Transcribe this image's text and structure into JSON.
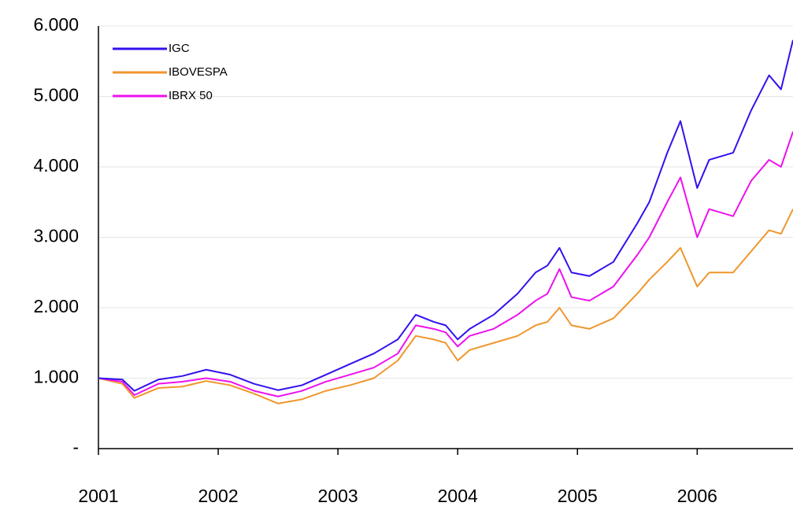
{
  "chart_data": {
    "type": "line",
    "x": [
      2001.0,
      2001.2,
      2001.3,
      2001.5,
      2001.7,
      2001.9,
      2002.1,
      2002.3,
      2002.5,
      2002.7,
      2002.9,
      2003.1,
      2003.3,
      2003.5,
      2003.65,
      2003.8,
      2003.9,
      2004.0,
      2004.1,
      2004.3,
      2004.5,
      2004.65,
      2004.75,
      2004.85,
      2004.95,
      2005.1,
      2005.3,
      2005.5,
      2005.6,
      2005.75,
      2005.86,
      2006.0,
      2006.1,
      2006.3,
      2006.45,
      2006.6,
      2006.7,
      2006.8
    ],
    "series": [
      {
        "name": "IGC",
        "color": "#3311ee",
        "values": [
          1000,
          980,
          820,
          980,
          1030,
          1120,
          1050,
          920,
          830,
          900,
          1050,
          1200,
          1350,
          1550,
          1900,
          1800,
          1750,
          1550,
          1700,
          1900,
          2200,
          2500,
          2600,
          2850,
          2500,
          2450,
          2650,
          3200,
          3500,
          4200,
          4650,
          3700,
          4100,
          4200,
          4800,
          5300,
          5100,
          5800
        ]
      },
      {
        "name": "IBOVESPA",
        "color": "#f0962c",
        "values": [
          1000,
          920,
          720,
          860,
          880,
          960,
          900,
          780,
          640,
          700,
          820,
          900,
          1000,
          1250,
          1600,
          1550,
          1500,
          1250,
          1400,
          1500,
          1600,
          1750,
          1800,
          2000,
          1750,
          1700,
          1850,
          2200,
          2400,
          2650,
          2850,
          2300,
          2500,
          2500,
          2800,
          3100,
          3050,
          3400
        ]
      },
      {
        "name": "IBRX 50",
        "color": "#ee11ee",
        "values": [
          1000,
          950,
          760,
          920,
          950,
          1000,
          950,
          820,
          740,
          820,
          950,
          1050,
          1150,
          1350,
          1750,
          1700,
          1650,
          1450,
          1600,
          1700,
          1900,
          2100,
          2200,
          2550,
          2150,
          2100,
          2300,
          2750,
          3000,
          3500,
          3850,
          3000,
          3400,
          3300,
          3800,
          4100,
          4000,
          4500
        ]
      }
    ],
    "xlim": [
      2001,
      2006.8
    ],
    "xticks": [
      2001,
      2002,
      2003,
      2004,
      2005,
      2006
    ],
    "ylim": [
      0,
      6000
    ],
    "yticks": [
      {
        "value": 0,
        "label": "-"
      },
      {
        "value": 1000,
        "label": "1.000"
      },
      {
        "value": 2000,
        "label": "2.000"
      },
      {
        "value": 3000,
        "label": "3.000"
      },
      {
        "value": 4000,
        "label": "4.000"
      },
      {
        "value": 5000,
        "label": "5.000"
      },
      {
        "value": 6000,
        "label": "6.000"
      }
    ],
    "grid": true,
    "legend": "upper left"
  }
}
